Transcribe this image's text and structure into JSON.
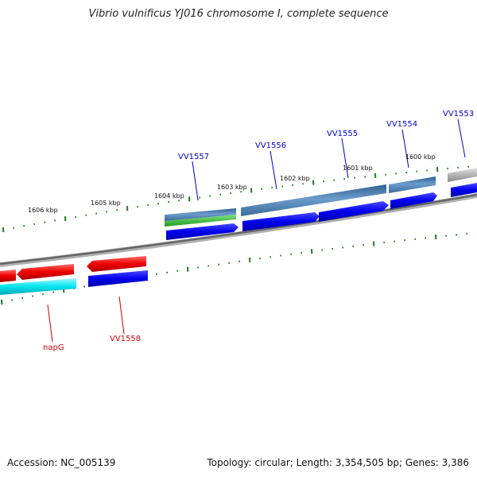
{
  "title": "Vibrio vulnificus YJ016 chromosome I, complete sequence",
  "footer": {
    "accession": "Accession: NC_005139",
    "topology": "Topology: circular; Length: 3,354,505 bp; Genes: 3,386"
  },
  "ruler_labels": [
    "1606 kbp",
    "1605 kbp",
    "1604 kbp",
    "1603 kbp",
    "1602 kbp",
    "1601 kbp",
    "1600 kbp"
  ],
  "gene_labels": {
    "forward": [
      "VV1557",
      "VV1556",
      "VV1555",
      "VV1554",
      "VV1553"
    ],
    "reverse": [
      "napG",
      "VV1558"
    ]
  },
  "colors": {
    "forward_label": "#0000cc",
    "reverse_label": "#cc0000",
    "cds_blue": "#0000ee",
    "steel": "#4a7fb5",
    "green": "#2fb52f",
    "red": "#ee0000",
    "cyan": "#00e5ee",
    "gray": "#a8a8a8",
    "backbone": "#7a7a7a",
    "tick": "#1e7a1e"
  }
}
